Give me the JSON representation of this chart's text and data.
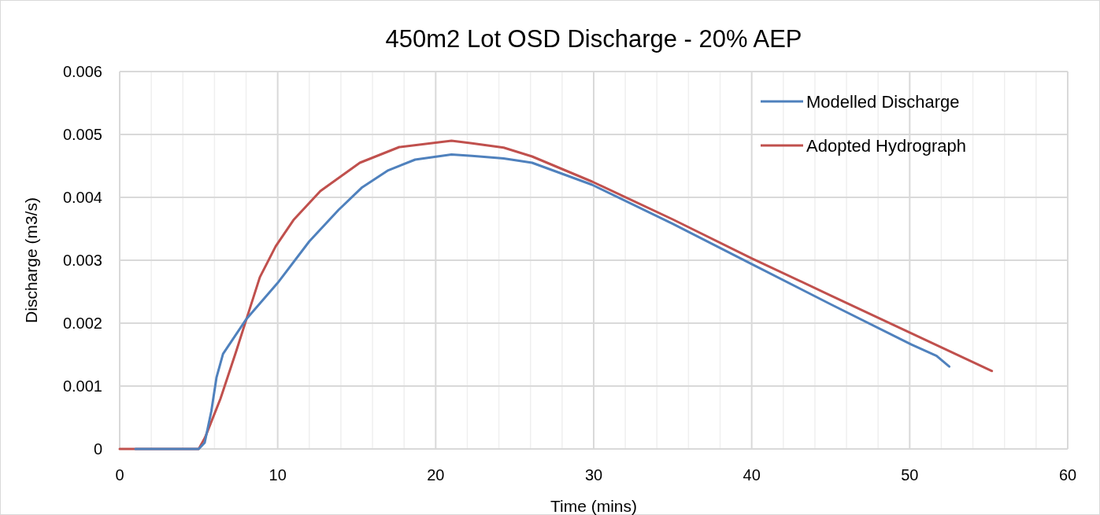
{
  "chart_data": {
    "type": "line",
    "title": "450m2 Lot OSD Discharge - 20% AEP",
    "xlabel": "Time (mins)",
    "ylabel": "Discharge (m3/s)",
    "xlim": [
      0,
      60
    ],
    "ylim": [
      0,
      0.006
    ],
    "xticks": [
      0,
      {
        "value": 2,
        "label": null
      },
      {
        "value": 4,
        "label": null
      },
      {
        "value": 6,
        "label": null
      },
      {
        "value": 8,
        "label": null
      },
      10,
      {
        "value": 12,
        "label": null
      },
      {
        "value": 14,
        "label": null
      },
      {
        "value": 16,
        "label": null
      },
      {
        "value": 18,
        "label": null
      },
      20,
      {
        "value": 22,
        "label": null
      },
      {
        "value": 24,
        "label": null
      },
      {
        "value": 26,
        "label": null
      },
      {
        "value": 28,
        "label": null
      },
      30,
      {
        "value": 32,
        "label": null
      },
      {
        "value": 34,
        "label": null
      },
      {
        "value": 36,
        "label": null
      },
      {
        "value": 38,
        "label": null
      },
      40,
      {
        "value": 42,
        "label": null
      },
      {
        "value": 44,
        "label": null
      },
      {
        "value": 46,
        "label": null
      },
      {
        "value": 48,
        "label": null
      },
      50,
      {
        "value": 52,
        "label": null
      },
      {
        "value": 54,
        "label": null
      },
      {
        "value": 56,
        "label": null
      },
      {
        "value": 58,
        "label": null
      },
      60
    ],
    "yticks": [
      0,
      0.001,
      0.002,
      0.003,
      0.004,
      0.005,
      0.006
    ],
    "grid": true,
    "legend": "top right",
    "line_style": "solid",
    "marker": "none",
    "series": [
      {
        "name": "Modelled Discharge",
        "color": "#4f81bd",
        "x": [
          1,
          2,
          3,
          4,
          5,
          5.38,
          5.8,
          6.13,
          6.54,
          8.03,
          10,
          12,
          13.85,
          15.35,
          17,
          18.7,
          21,
          22.3,
          24.3,
          26.1,
          29.9,
          35,
          40,
          45,
          50.1,
          51.7,
          52.5
        ],
        "values": [
          0,
          0,
          0,
          0,
          0,
          0.0001,
          0.0006,
          0.00114,
          0.00151,
          0.00207,
          0.00264,
          0.0033,
          0.0038,
          0.00416,
          0.00443,
          0.0046,
          0.00468,
          0.00466,
          0.00462,
          0.00455,
          0.0042,
          0.00358,
          0.00294,
          0.0023,
          0.00166,
          0.00148,
          0.00131
        ]
      },
      {
        "name": "Adopted Hydrograph",
        "color": "#c0504d",
        "x": [
          0,
          1,
          5,
          5.4,
          6.38,
          7.37,
          8.03,
          8.87,
          9.87,
          11,
          12.7,
          15.2,
          17.7,
          21,
          22.3,
          24.3,
          26.1,
          29.9,
          35,
          40,
          45,
          50.1,
          55.2
        ],
        "values": [
          0,
          0,
          0,
          0.00018,
          0.0008,
          0.00155,
          0.00207,
          0.00273,
          0.00322,
          0.00364,
          0.0041,
          0.00455,
          0.0048,
          0.0049,
          0.00486,
          0.00479,
          0.00465,
          0.00425,
          0.00365,
          0.00303,
          0.00244,
          0.00184,
          0.00124
        ]
      }
    ]
  }
}
